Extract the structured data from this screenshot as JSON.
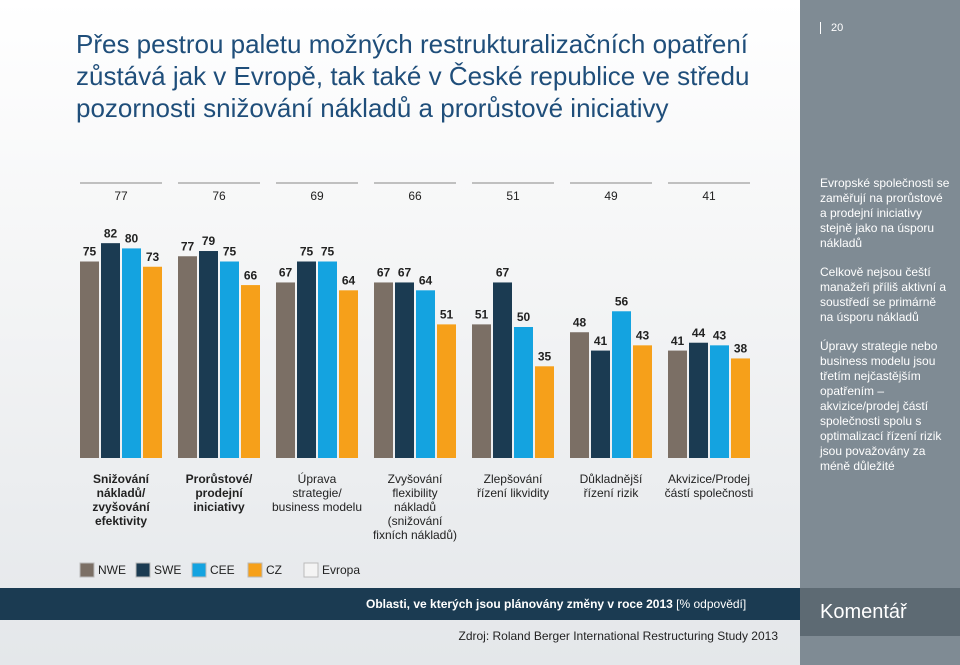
{
  "slide_number": "20",
  "title_lines": [
    "Přes pestrou paletu možných restrukturalizačních opatření",
    "zůstává jak v Evropě, tak také v České republice ve středu",
    "pozornosti snižování nákladů a prorůstové iniciativy"
  ],
  "chart_data": {
    "type": "bar",
    "categories": [
      [
        "Snižování",
        "nákladů/",
        "zvyšování",
        "efektivity"
      ],
      [
        "Prorůstové/",
        "prodejní",
        "iniciativy"
      ],
      [
        "Úprava",
        "strategie/",
        "business modelu"
      ],
      [
        "Zvyšování",
        "flexibility",
        "nákladů",
        "(snižování",
        "fixních nákladů)"
      ],
      [
        "Zlepšování",
        "řízení likvidity"
      ],
      [
        "Důkladnější",
        "řízení rizik"
      ],
      [
        "Akvizice/Prodej",
        "částí společnosti"
      ]
    ],
    "bold_categories": [
      0,
      1
    ],
    "series": [
      {
        "name": "NWE",
        "color": "#7b6f65",
        "values": [
          75,
          77,
          67,
          67,
          51,
          48,
          41
        ]
      },
      {
        "name": "SWE",
        "color": "#1b3b52",
        "values": [
          82,
          79,
          75,
          67,
          67,
          41,
          44
        ]
      },
      {
        "name": "CEE",
        "color": "#14a3e0",
        "values": [
          80,
          75,
          75,
          64,
          50,
          56,
          43
        ]
      },
      {
        "name": "CZ",
        "color": "#f6a01a",
        "values": [
          73,
          66,
          64,
          51,
          35,
          43,
          38
        ]
      }
    ],
    "total": {
      "name": "Evropa",
      "values": [
        77,
        76,
        69,
        66,
        51,
        49,
        41
      ]
    },
    "footer_bold": "Oblasti, ve kterých jsou plánovány změny v roce 2013",
    "footer_unit": "[% odpovědí]",
    "source": "Zdroj: Roland Berger International Restructuring Study 2013"
  },
  "comments": [
    "Evropské společnosti se zaměřují na prorůstové a prodejní iniciativy stejně jako na úsporu nákladů",
    "Celkově nejsou čeští manažeři příliš aktivní a soustředí se primárně na úsporu nákladů",
    "Úpravy strategie nebo business modelu jsou třetím nejčastějším opatřením – akvizice/prodej částí společnosti spolu s optimalizací řízení rizik jsou považovány za méně důležité"
  ],
  "comment_heading": "Komentář"
}
